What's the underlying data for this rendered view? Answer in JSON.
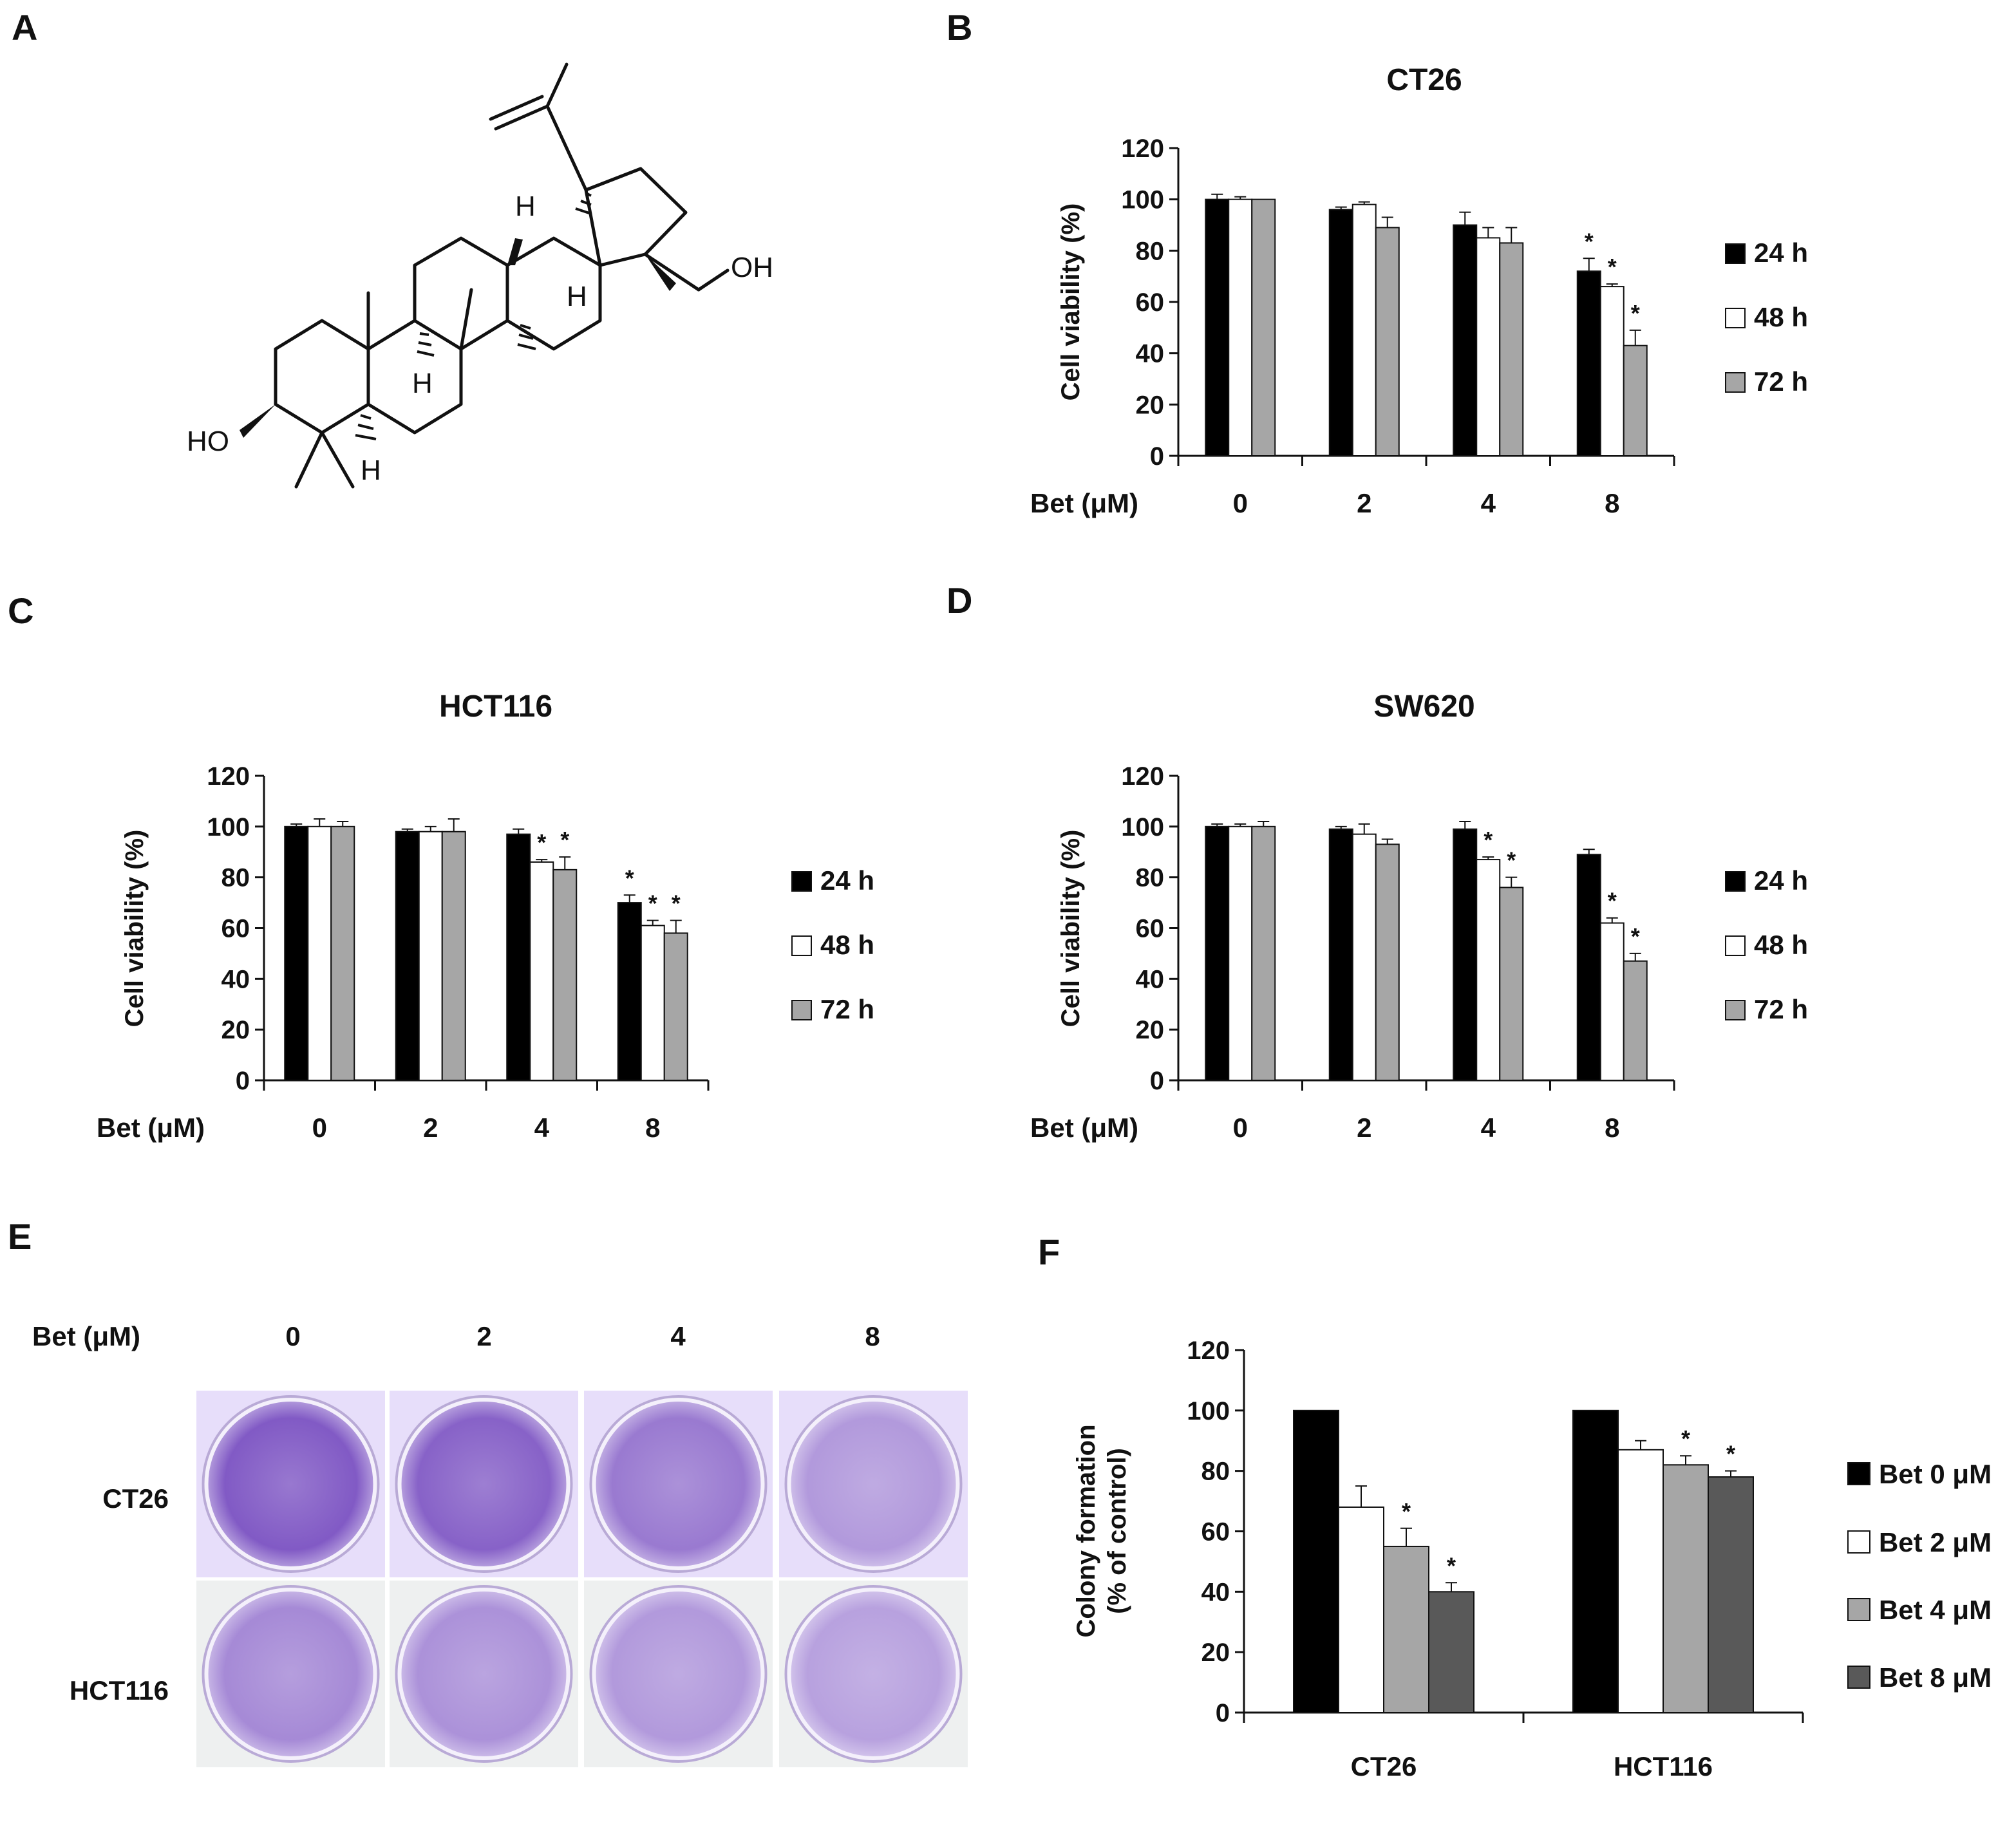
{
  "panels": {
    "A": "A",
    "B": "B",
    "C": "C",
    "D": "D",
    "E": "E",
    "F": "F"
  },
  "structure": {
    "oh_right": "OH",
    "ho_left": "HO",
    "h_labels": [
      "H",
      "H",
      "H",
      "H"
    ]
  },
  "colors": {
    "h24": "#000000",
    "h48": "#ffffff",
    "h72": "#a6a6a6",
    "bet0": "#000000",
    "bet2": "#ffffff",
    "bet4": "#a6a6a6",
    "bet8": "#595959",
    "plate_stain": "#7b52c2",
    "plate_bg_ct26": "#e7defa",
    "plate_bg_hct": "#eef0f0"
  },
  "panel_e": {
    "header": "Bet (μM)",
    "columns": [
      "0",
      "2",
      "4",
      "8"
    ],
    "rows": [
      "CT26",
      "HCT116"
    ],
    "stain_intensity_ct26": [
      0.95,
      0.9,
      0.75,
      0.55
    ],
    "stain_intensity_hct116": [
      0.65,
      0.6,
      0.55,
      0.5
    ]
  },
  "chart_data": [
    {
      "id": "B",
      "type": "bar",
      "title": "CT26",
      "ylabel": "Cell viability (%)",
      "xlabel": "Bet (μM)",
      "categories": [
        "0",
        "2",
        "4",
        "8"
      ],
      "ylim": [
        0,
        120
      ],
      "yticks": [
        "0",
        "20",
        "40",
        "60",
        "80",
        "100",
        "120"
      ],
      "legend_position": "right",
      "series": [
        {
          "name": "24 h",
          "values": [
            100,
            96,
            90,
            72
          ],
          "errors": [
            2,
            1,
            5,
            5
          ],
          "sig": [
            false,
            false,
            false,
            true
          ]
        },
        {
          "name": "48 h",
          "values": [
            100,
            98,
            85,
            66
          ],
          "errors": [
            1,
            1,
            4,
            1
          ],
          "sig": [
            false,
            false,
            false,
            true
          ]
        },
        {
          "name": "72 h",
          "values": [
            100,
            89,
            83,
            43
          ],
          "errors": [
            0,
            4,
            6,
            6
          ],
          "sig": [
            false,
            false,
            false,
            true
          ]
        }
      ]
    },
    {
      "id": "C",
      "type": "bar",
      "title": "HCT116",
      "ylabel": "Cell viability (%)",
      "xlabel": "Bet (μM)",
      "categories": [
        "0",
        "2",
        "4",
        "8"
      ],
      "ylim": [
        0,
        120
      ],
      "yticks": [
        "0",
        "20",
        "40",
        "60",
        "80",
        "100",
        "120"
      ],
      "legend_position": "right",
      "series": [
        {
          "name": "24 h",
          "values": [
            100,
            98,
            97,
            70
          ],
          "errors": [
            1,
            1,
            2,
            3
          ],
          "sig": [
            false,
            false,
            false,
            true
          ]
        },
        {
          "name": "48 h",
          "values": [
            100,
            98,
            86,
            61
          ],
          "errors": [
            3,
            2,
            1,
            2
          ],
          "sig": [
            false,
            false,
            true,
            true
          ]
        },
        {
          "name": "72 h",
          "values": [
            100,
            98,
            83,
            58
          ],
          "errors": [
            2,
            5,
            5,
            5
          ],
          "sig": [
            false,
            false,
            true,
            true
          ]
        }
      ]
    },
    {
      "id": "D",
      "type": "bar",
      "title": "SW620",
      "ylabel": "Cell viability (%)",
      "xlabel": "Bet (μM)",
      "categories": [
        "0",
        "2",
        "4",
        "8"
      ],
      "ylim": [
        0,
        120
      ],
      "yticks": [
        "0",
        "20",
        "40",
        "60",
        "80",
        "100",
        "120"
      ],
      "legend_position": "right",
      "series": [
        {
          "name": "24 h",
          "values": [
            100,
            99,
            99,
            89
          ],
          "errors": [
            1,
            1,
            3,
            2
          ],
          "sig": [
            false,
            false,
            false,
            false
          ]
        },
        {
          "name": "48 h",
          "values": [
            100,
            97,
            87,
            62
          ],
          "errors": [
            1,
            4,
            1,
            2
          ],
          "sig": [
            false,
            false,
            true,
            true
          ]
        },
        {
          "name": "72 h",
          "values": [
            100,
            93,
            76,
            47
          ],
          "errors": [
            2,
            2,
            4,
            3
          ],
          "sig": [
            false,
            false,
            true,
            true
          ]
        }
      ]
    },
    {
      "id": "F",
      "type": "bar",
      "title": "",
      "ylabel": "Colony formation",
      "ylabel2": "(% of control)",
      "xlabel": "",
      "categories": [
        "CT26",
        "HCT116"
      ],
      "ylim": [
        0,
        120
      ],
      "yticks": [
        "0",
        "20",
        "40",
        "60",
        "80",
        "100",
        "120"
      ],
      "legend_position": "right",
      "series": [
        {
          "name": "Bet 0 μM",
          "values": [
            100,
            100
          ],
          "errors": [
            0,
            0
          ],
          "sig": [
            false,
            false
          ]
        },
        {
          "name": "Bet 2 μM",
          "values": [
            68,
            87
          ],
          "errors": [
            7,
            3
          ],
          "sig": [
            false,
            false
          ]
        },
        {
          "name": "Bet 4 μM",
          "values": [
            55,
            82
          ],
          "errors": [
            6,
            3
          ],
          "sig": [
            true,
            true
          ]
        },
        {
          "name": "Bet 8 μM",
          "values": [
            40,
            78
          ],
          "errors": [
            3,
            2
          ],
          "sig": [
            true,
            true
          ]
        }
      ]
    }
  ],
  "sig_marker": "*"
}
